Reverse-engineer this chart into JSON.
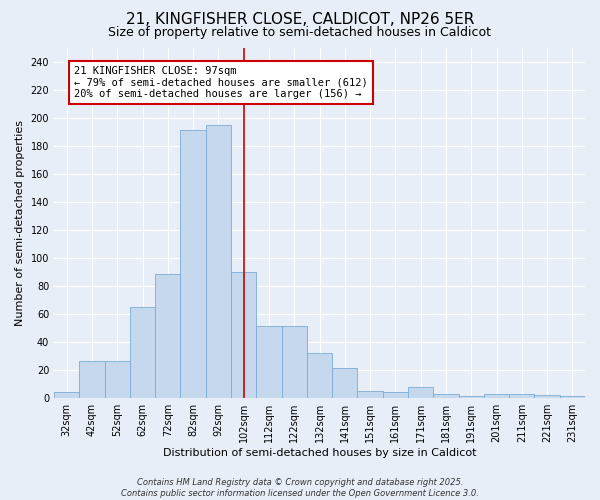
{
  "title": "21, KINGFISHER CLOSE, CALDICOT, NP26 5ER",
  "subtitle": "Size of property relative to semi-detached houses in Caldicot",
  "xlabel": "Distribution of semi-detached houses by size in Caldicot",
  "ylabel": "Number of semi-detached properties",
  "categories": [
    "32sqm",
    "42sqm",
    "52sqm",
    "62sqm",
    "72sqm",
    "82sqm",
    "92sqm",
    "102sqm",
    "112sqm",
    "122sqm",
    "132sqm",
    "141sqm",
    "151sqm",
    "161sqm",
    "171sqm",
    "181sqm",
    "191sqm",
    "201sqm",
    "211sqm",
    "221sqm",
    "231sqm"
  ],
  "values": [
    4,
    26,
    26,
    65,
    88,
    191,
    195,
    90,
    51,
    51,
    32,
    21,
    5,
    4,
    8,
    3,
    1,
    3,
    3,
    2,
    1
  ],
  "bar_color": "#c5d8ee",
  "bar_edge_color": "#7aadd4",
  "bar_width": 1.0,
  "red_line_x": 7.0,
  "red_line_color": "#cc0000",
  "annotation_text": "21 KINGFISHER CLOSE: 97sqm\n← 79% of semi-detached houses are smaller (612)\n20% of semi-detached houses are larger (156) →",
  "annotation_box_color": "#ffffff",
  "annotation_box_edge_color": "#cc0000",
  "ylim": [
    0,
    250
  ],
  "yticks": [
    0,
    20,
    40,
    60,
    80,
    100,
    120,
    140,
    160,
    180,
    200,
    220,
    240
  ],
  "background_color": "#e8eef7",
  "grid_color": "#ffffff",
  "title_fontsize": 11,
  "subtitle_fontsize": 9,
  "axis_label_fontsize": 8,
  "tick_fontsize": 7,
  "annotation_fontsize": 7.5,
  "footer_text": "Contains HM Land Registry data © Crown copyright and database right 2025.\nContains public sector information licensed under the Open Government Licence 3.0.",
  "footer_fontsize": 6
}
